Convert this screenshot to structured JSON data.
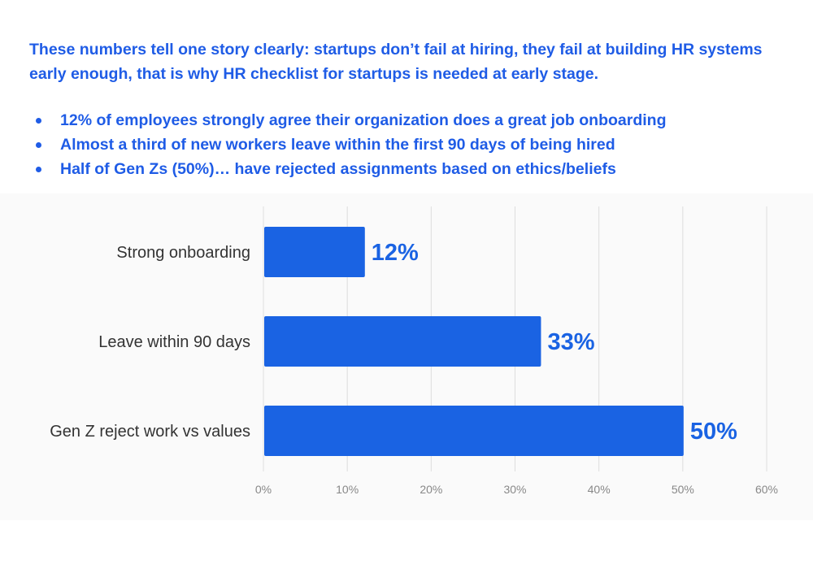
{
  "intro": {
    "text": "These numbers tell one story clearly: startups don’t fail at hiring, they fail at building HR systems early enough, that is why HR checklist for startups is needed at early stage."
  },
  "bullets": [
    "12% of employees strongly agree their organization does a great job onboarding",
    "Almost a third of new workers leave within the first 90 days of being hired",
    "Half of Gen Zs (50%)… have rejected assignments based on ethics/beliefs"
  ],
  "colors": {
    "accent": "#1f5ce6",
    "bar": "#1a63e3",
    "grid": "#dddddd",
    "label_text": "#333333",
    "tick_text": "#888888"
  },
  "chart_data": {
    "type": "bar",
    "orientation": "horizontal",
    "categories": [
      "Strong onboarding",
      "Leave within 90 days",
      "Gen Z reject work vs values"
    ],
    "values": [
      12,
      33,
      50
    ],
    "data_labels": [
      "12%",
      "33%",
      "50%"
    ],
    "xlim": [
      0,
      60
    ],
    "xticks": [
      "0%",
      "10%",
      "20%",
      "30%",
      "40%",
      "50%",
      "60%"
    ],
    "grid": true
  }
}
